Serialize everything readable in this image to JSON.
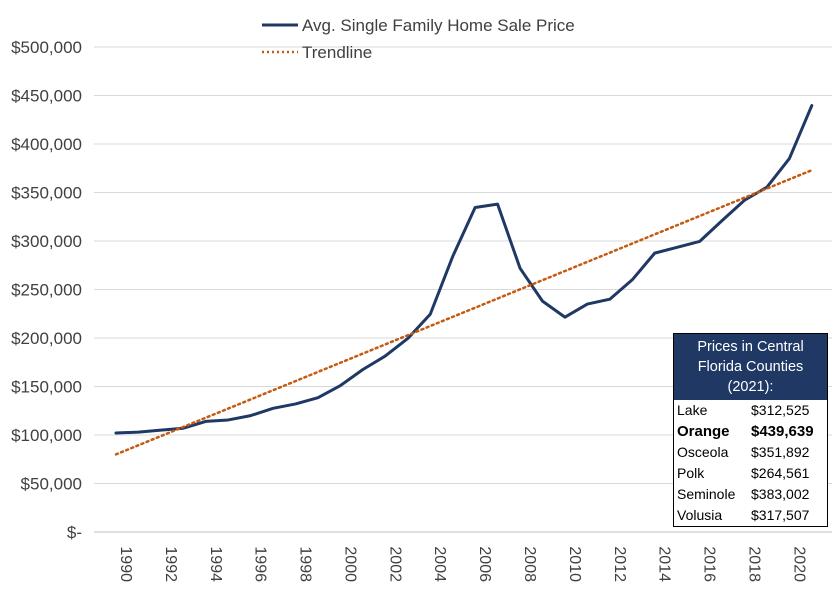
{
  "chart_data": {
    "type": "line",
    "title": "",
    "xlabel": "",
    "ylabel": "",
    "ylim": [
      0,
      500000
    ],
    "xlim": [
      1990,
      2021
    ],
    "grid": true,
    "legend_position": "top-center",
    "y_tick_labels": [
      "$-",
      "$50,000",
      "$100,000",
      "$150,000",
      "$200,000",
      "$250,000",
      "$300,000",
      "$350,000",
      "$400,000",
      "$450,000",
      "$500,000"
    ],
    "y_tick_values": [
      0,
      50000,
      100000,
      150000,
      200000,
      250000,
      300000,
      350000,
      400000,
      450000,
      500000
    ],
    "x_tick_labels": [
      "1990",
      "1992",
      "1994",
      "1996",
      "1998",
      "2000",
      "2002",
      "2004",
      "2006",
      "2008",
      "2010",
      "2012",
      "2014",
      "2016",
      "2018",
      "2020"
    ],
    "x_tick_values": [
      1990,
      1992,
      1994,
      1996,
      1998,
      2000,
      2002,
      2004,
      2006,
      2008,
      2010,
      2012,
      2014,
      2016,
      2018,
      2020
    ],
    "series": [
      {
        "name": "Avg. Single Family Home Sale Price",
        "color": "#1f3864",
        "x": [
          1990,
          1991,
          1992,
          1993,
          1994,
          1995,
          1996,
          1997,
          1998,
          1999,
          2000,
          2001,
          2002,
          2003,
          2004,
          2005,
          2006,
          2007,
          2008,
          2009,
          2010,
          2011,
          2012,
          2013,
          2014,
          2015,
          2016,
          2017,
          2018,
          2019,
          2020,
          2021
        ],
        "values": [
          102000,
          103000,
          105000,
          107000,
          114000,
          115500,
          120000,
          127500,
          132000,
          138500,
          151000,
          167500,
          181500,
          199500,
          224500,
          284000,
          334500,
          338000,
          272000,
          238000,
          221500,
          235000,
          240000,
          260000,
          287500,
          293500,
          299500,
          321000,
          342000,
          355500,
          385000,
          439639
        ]
      },
      {
        "name": "Trendline",
        "color": "#c55a11",
        "dashed": true,
        "x": [
          1990,
          2021
        ],
        "values": [
          80000,
          373000
        ]
      }
    ]
  },
  "info_panel": {
    "title": "Prices in Central Florida Counties (2021):",
    "rows": [
      {
        "county": "Lake",
        "price": "$312,525"
      },
      {
        "county": "Orange",
        "price": "$439,639"
      },
      {
        "county": "Osceola",
        "price": "$351,892"
      },
      {
        "county": "Polk",
        "price": "$264,561"
      },
      {
        "county": "Seminole",
        "price": "$383,002"
      },
      {
        "county": "Volusia",
        "price": "$317,507"
      }
    ]
  }
}
